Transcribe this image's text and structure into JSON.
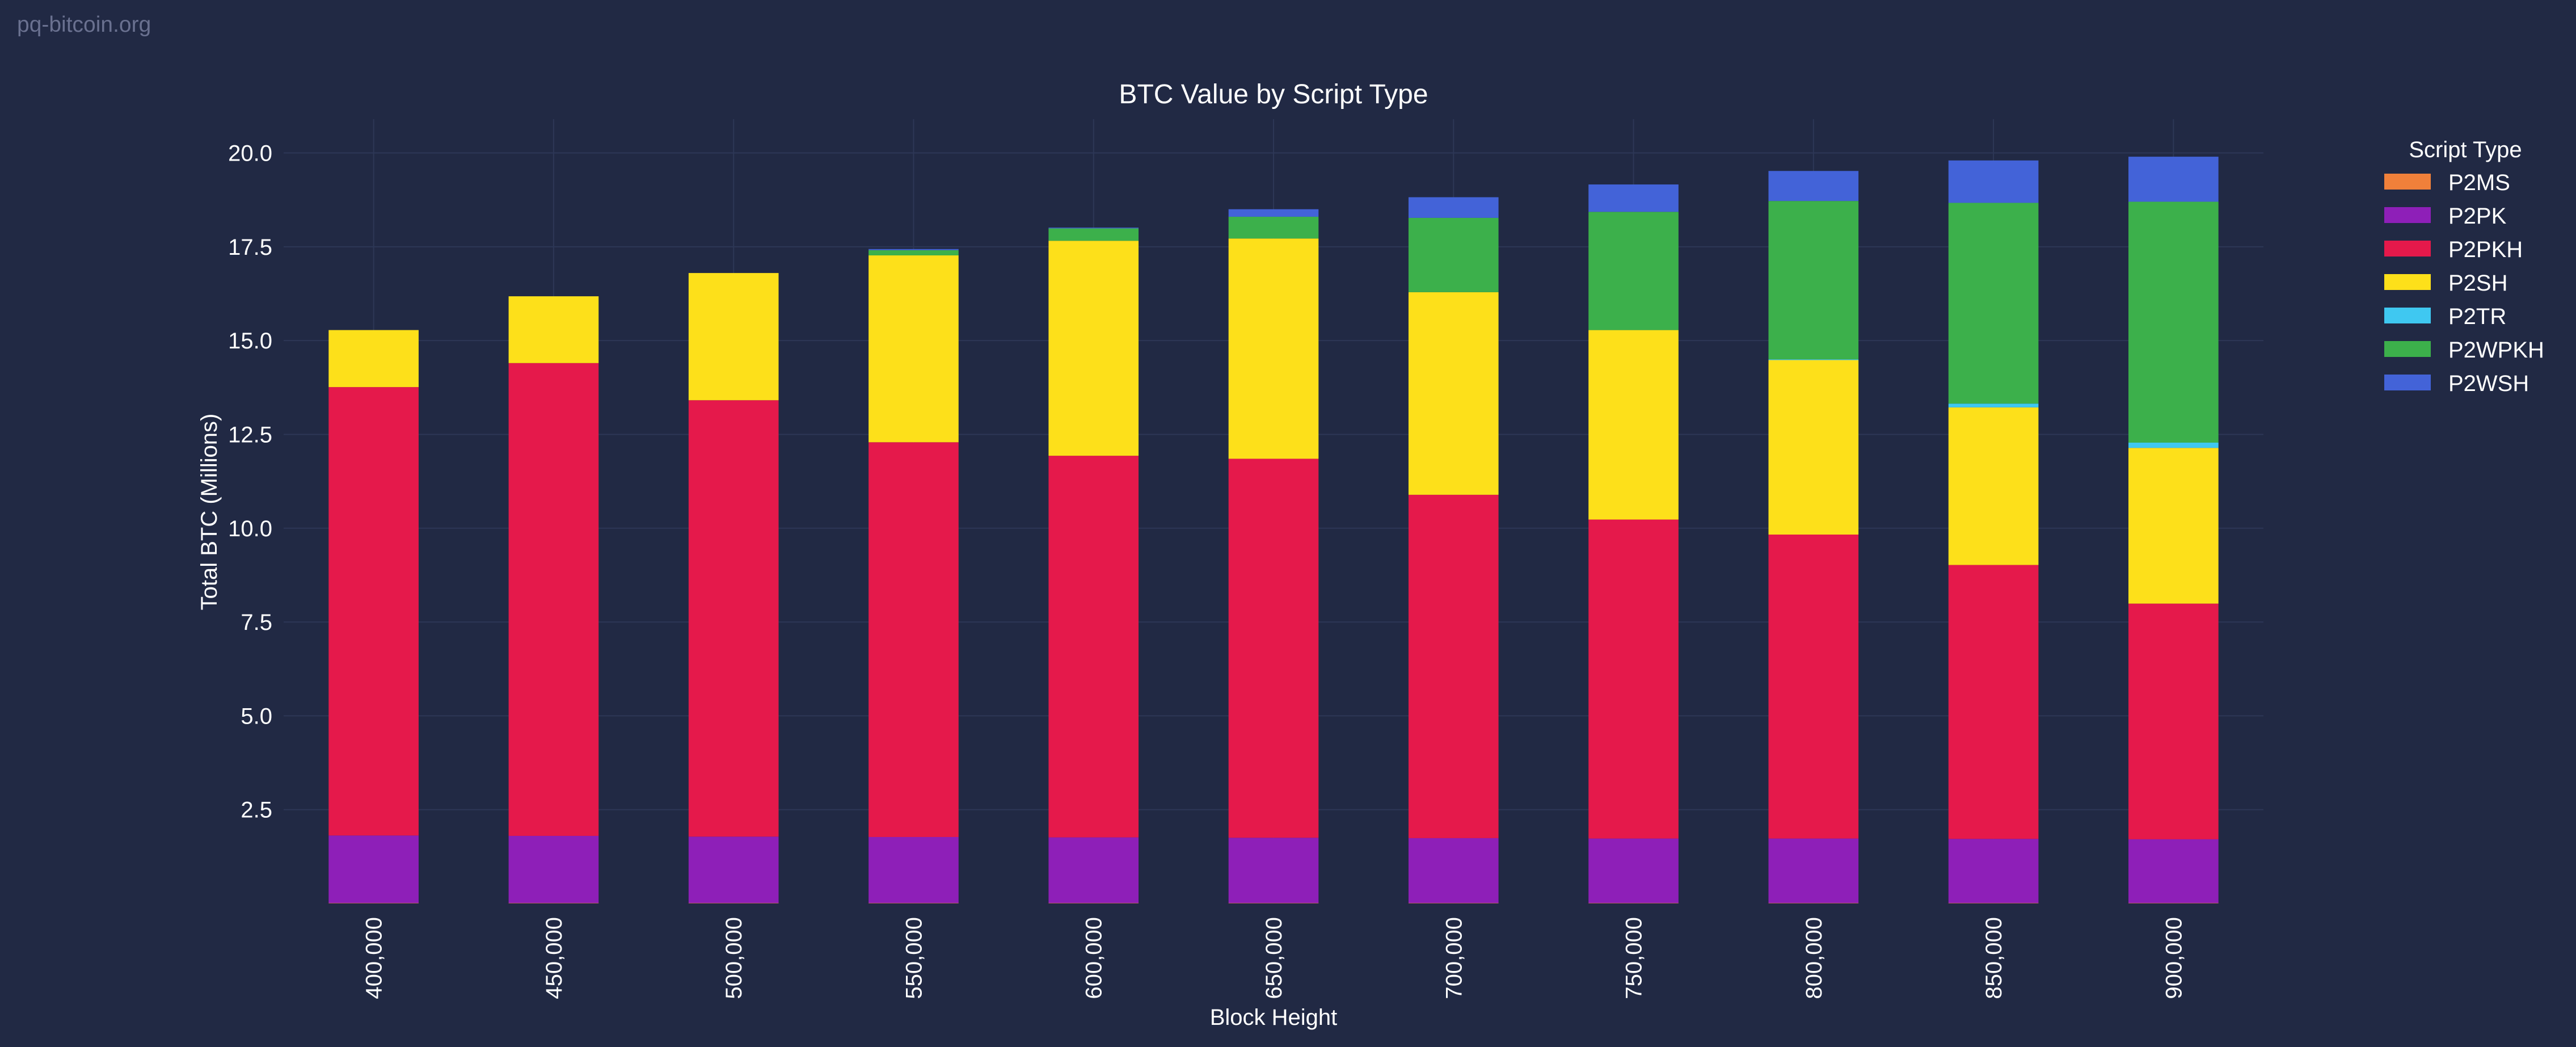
{
  "watermark": "pq-bitcoin.org",
  "colors": {
    "background": "#212944",
    "grid": "#2d3756",
    "text": "#ffffff",
    "watermark": "#6a7190"
  },
  "chart_data": {
    "type": "bar",
    "stacked": true,
    "title": "BTC Value by Script Type",
    "xlabel": "Block Height",
    "ylabel": "Total BTC (Millions)",
    "ylim": [
      0,
      20.9
    ],
    "yticks": [
      2.5,
      5.0,
      7.5,
      10.0,
      12.5,
      15.0,
      17.5,
      20.0
    ],
    "ytick_labels": [
      "2.5",
      "5.0",
      "7.5",
      "10.0",
      "12.5",
      "15.0",
      "17.5",
      "20.0"
    ],
    "grid": true,
    "legend": {
      "title": "Script Type",
      "placement": "right"
    },
    "categories": [
      "400,000",
      "450,000",
      "500,000",
      "550,000",
      "600,000",
      "650,000",
      "700,000",
      "750,000",
      "800,000",
      "850,000",
      "900,000"
    ],
    "series": [
      {
        "name": "P2MS",
        "color": "#f0803a",
        "values": [
          0.01,
          0.01,
          0.01,
          0.01,
          0.01,
          0.01,
          0.01,
          0.01,
          0.01,
          0.01,
          0.01
        ]
      },
      {
        "name": "P2PK",
        "color": "#8e1fb8",
        "values": [
          1.8,
          1.79,
          1.77,
          1.76,
          1.75,
          1.74,
          1.73,
          1.72,
          1.72,
          1.71,
          1.7
        ]
      },
      {
        "name": "P2PKH",
        "color": "#e5194b",
        "values": [
          11.95,
          12.6,
          11.63,
          10.52,
          10.17,
          10.1,
          9.15,
          8.5,
          8.1,
          7.3,
          6.28
        ]
      },
      {
        "name": "P2SH",
        "color": "#fde01a",
        "values": [
          1.52,
          1.78,
          3.39,
          4.98,
          5.73,
          5.87,
          5.4,
          5.05,
          4.65,
          4.2,
          4.15
        ]
      },
      {
        "name": "P2TR",
        "color": "#3fc8f1",
        "values": [
          0,
          0,
          0,
          0,
          0,
          0,
          0,
          0,
          0.02,
          0.1,
          0.14
        ]
      },
      {
        "name": "P2WPKH",
        "color": "#3cb04b",
        "values": [
          0,
          0,
          0,
          0.14,
          0.33,
          0.58,
          1.98,
          3.15,
          4.22,
          5.35,
          6.42
        ]
      },
      {
        "name": "P2WSH",
        "color": "#4363d8",
        "values": [
          0,
          0,
          0,
          0.03,
          0.02,
          0.2,
          0.55,
          0.73,
          0.8,
          1.13,
          1.2
        ]
      }
    ]
  }
}
